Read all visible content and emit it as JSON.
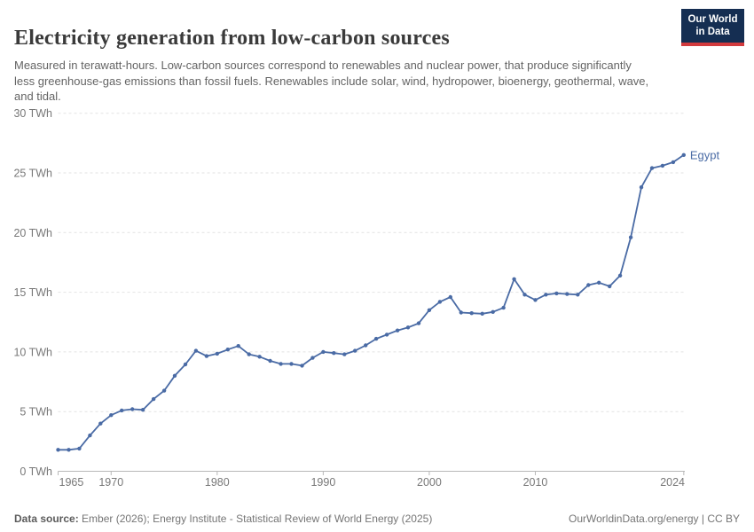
{
  "header": {
    "title": "Electricity generation from low-carbon sources",
    "subtitle": "Measured in terawatt-hours. Low-carbon sources correspond to renewables and nuclear power, that produce significantly less greenhouse-gas emissions than fossil fuels. Renewables include solar, wind, hydropower, bioenergy, geothermal, wave, and tidal.",
    "logo": {
      "line1": "Our World",
      "line2": "in Data",
      "bg_color": "#152E52",
      "accent_color": "#D23A3D"
    }
  },
  "chart_data": {
    "type": "line",
    "title": "Electricity generation from low-carbon sources",
    "unit": "TWh",
    "xlabel": "",
    "ylabel": "TWh",
    "xlim": [
      1965,
      2024
    ],
    "ylim": [
      0,
      30
    ],
    "grid": "horizontal-dashed",
    "legend_position": "end-of-line-label",
    "x": [
      1965,
      1966,
      1967,
      1968,
      1969,
      1970,
      1971,
      1972,
      1973,
      1974,
      1975,
      1976,
      1977,
      1978,
      1979,
      1980,
      1981,
      1982,
      1983,
      1984,
      1985,
      1986,
      1987,
      1988,
      1989,
      1990,
      1991,
      1992,
      1993,
      1994,
      1995,
      1996,
      1997,
      1998,
      1999,
      2000,
      2001,
      2002,
      2003,
      2004,
      2005,
      2006,
      2007,
      2008,
      2009,
      2010,
      2011,
      2012,
      2013,
      2014,
      2015,
      2016,
      2017,
      2018,
      2019,
      2020,
      2021,
      2022,
      2023,
      2024
    ],
    "series": [
      {
        "name": "Egypt",
        "color": "#4A6BA5",
        "values": [
          1.8,
          1.8,
          1.9,
          3.0,
          4.0,
          4.7,
          5.1,
          5.2,
          5.15,
          6.05,
          6.75,
          8.0,
          8.95,
          10.1,
          9.65,
          9.85,
          10.2,
          10.5,
          9.8,
          9.6,
          9.25,
          9.0,
          9.0,
          8.85,
          9.5,
          10.0,
          9.9,
          9.8,
          10.1,
          10.55,
          11.1,
          11.45,
          11.8,
          12.05,
          12.4,
          13.5,
          14.2,
          14.6,
          13.3,
          13.25,
          13.2,
          13.35,
          13.7,
          16.1,
          14.8,
          14.35,
          14.8,
          14.9,
          14.85,
          14.8,
          15.6,
          15.8,
          15.5,
          16.4,
          19.6,
          23.8,
          25.4,
          25.6,
          25.9,
          26.5
        ]
      }
    ],
    "yticks": [
      {
        "value": 0,
        "label": "0 TWh"
      },
      {
        "value": 5,
        "label": "5 TWh"
      },
      {
        "value": 10,
        "label": "10 TWh"
      },
      {
        "value": 15,
        "label": "15 TWh"
      },
      {
        "value": 20,
        "label": "20 TWh"
      },
      {
        "value": 25,
        "label": "25 TWh"
      },
      {
        "value": 30,
        "label": "30 TWh"
      }
    ],
    "xticks": [
      {
        "value": 1965,
        "label": "1965",
        "anchor": "start"
      },
      {
        "value": 1970,
        "label": "1970",
        "anchor": "middle"
      },
      {
        "value": 1980,
        "label": "1980",
        "anchor": "middle"
      },
      {
        "value": 1990,
        "label": "1990",
        "anchor": "middle"
      },
      {
        "value": 2000,
        "label": "2000",
        "anchor": "middle"
      },
      {
        "value": 2010,
        "label": "2010",
        "anchor": "middle"
      },
      {
        "value": 2024,
        "label": "2024",
        "anchor": "end"
      }
    ]
  },
  "footer": {
    "datasource_label": "Data source:",
    "datasource_text": " Ember (2026); Energy Institute - Statistical Review of World Energy (2025)",
    "right_text": "OurWorldinData.org/energy | CC BY"
  }
}
